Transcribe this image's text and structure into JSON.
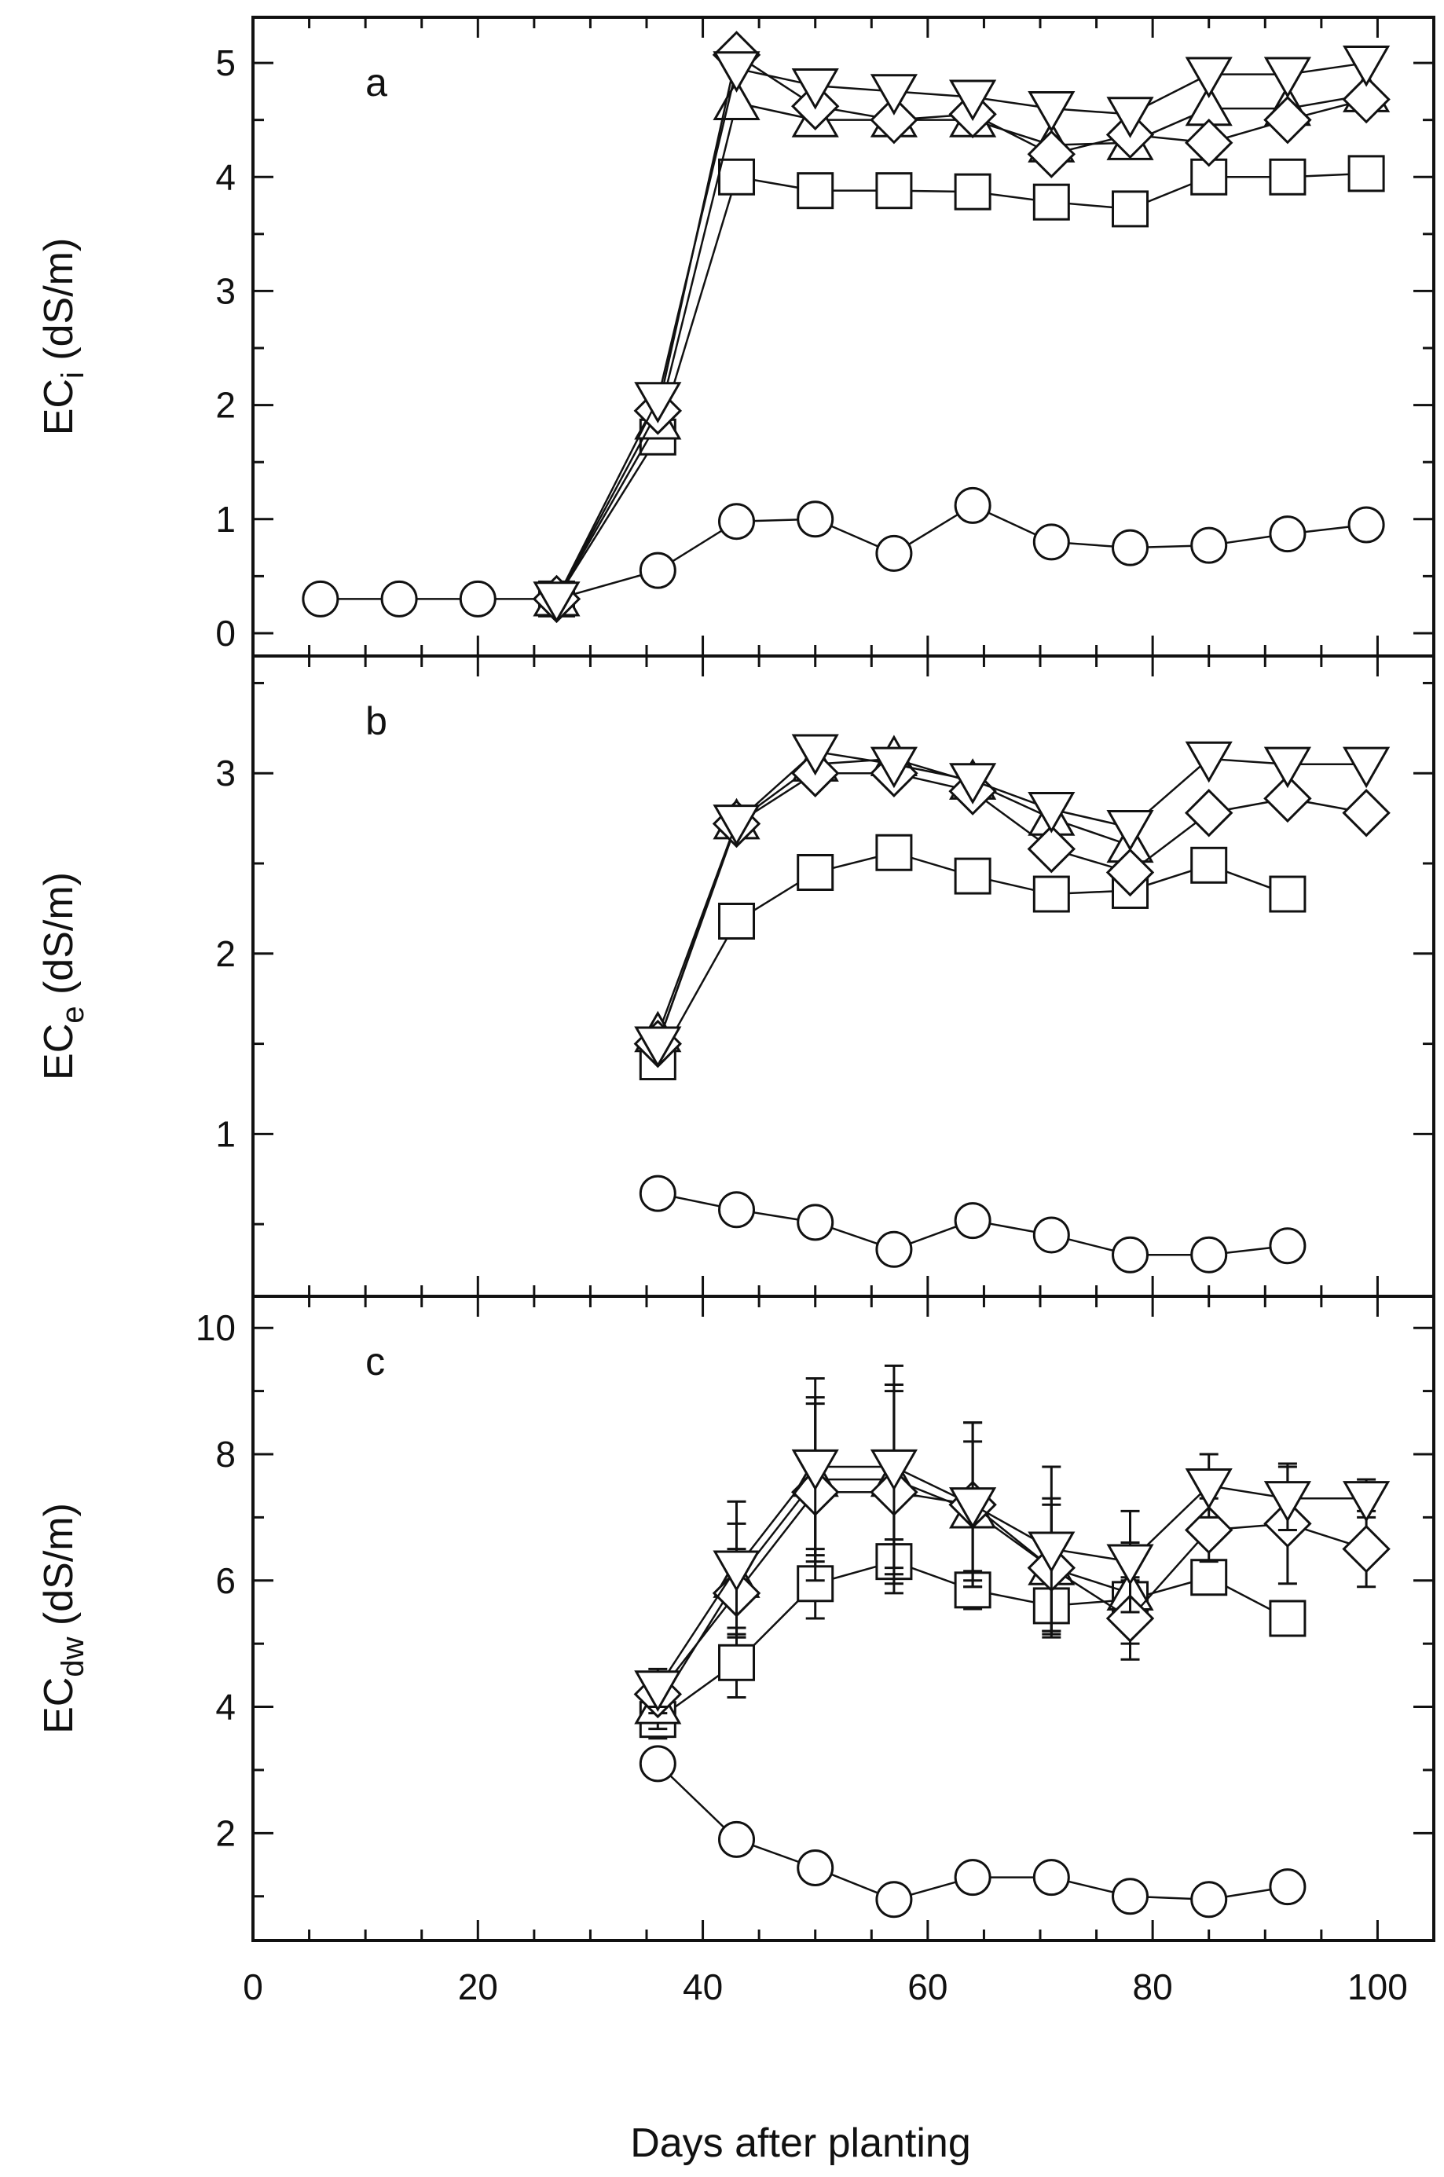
{
  "chart_data": {
    "type": "line",
    "xlabel": "Days after planting",
    "xlim": [
      0,
      105
    ],
    "xticks": [
      0,
      20,
      40,
      60,
      80,
      100
    ],
    "xtick_labels": [
      "0",
      "20",
      "40",
      "60",
      "80",
      "100"
    ],
    "panels": [
      {
        "id": "a",
        "label": "a",
        "ylabel_main": "EC",
        "ylabel_sub": "i",
        "ylabel_unit": " (dS/m)",
        "ylim": [
          -0.2,
          5.4
        ],
        "yticks": [
          0,
          1,
          2,
          3,
          4,
          5
        ],
        "ytick_labels": [
          "0",
          "1",
          "2",
          "3",
          "4",
          "5"
        ],
        "series": [
          {
            "name": "circle",
            "marker": "circle",
            "x": [
              6,
              13,
              20,
              27,
              36,
              43,
              50,
              57,
              64,
              71,
              78,
              85,
              92,
              99
            ],
            "y": [
              0.3,
              0.3,
              0.3,
              0.3,
              0.55,
              0.98,
              1.0,
              0.7,
              1.12,
              0.8,
              0.75,
              0.77,
              0.87,
              0.95
            ]
          },
          {
            "name": "square",
            "marker": "square",
            "x": [
              27,
              36,
              43,
              50,
              57,
              64,
              71,
              78,
              85,
              92,
              99
            ],
            "y": [
              0.3,
              1.72,
              4.0,
              3.88,
              3.88,
              3.87,
              3.78,
              3.72,
              4.0,
              4.0,
              4.03
            ]
          },
          {
            "name": "triangle-up",
            "marker": "triangle-up",
            "x": [
              27,
              36,
              43,
              50,
              57,
              64,
              71,
              78,
              85,
              92,
              99
            ],
            "y": [
              0.3,
              1.85,
              4.65,
              4.5,
              4.5,
              4.5,
              4.28,
              4.3,
              4.6,
              4.6,
              4.72
            ]
          },
          {
            "name": "diamond",
            "marker": "diamond",
            "x": [
              27,
              36,
              43,
              50,
              57,
              64,
              71,
              78,
              85,
              92,
              99
            ],
            "y": [
              0.3,
              1.95,
              5.07,
              4.62,
              4.5,
              4.55,
              4.2,
              4.37,
              4.3,
              4.5,
              4.68
            ]
          },
          {
            "name": "triangle-down",
            "marker": "triangle-down",
            "x": [
              27,
              36,
              43,
              50,
              57,
              64,
              71,
              78,
              85,
              92,
              99
            ],
            "y": [
              0.3,
              2.05,
              4.95,
              4.8,
              4.75,
              4.7,
              4.6,
              4.55,
              4.9,
              4.9,
              5.0
            ]
          }
        ]
      },
      {
        "id": "b",
        "label": "b",
        "ylabel_main": "EC",
        "ylabel_sub": "e",
        "ylabel_unit": " (dS/m)",
        "ylim": [
          0.1,
          3.65
        ],
        "yticks": [
          1,
          2,
          3
        ],
        "ytick_labels": [
          "1",
          "2",
          "3"
        ],
        "series": [
          {
            "name": "circle",
            "marker": "circle",
            "x": [
              36,
              43,
              50,
              57,
              64,
              71,
              78,
              85,
              92
            ],
            "y": [
              0.67,
              0.58,
              0.51,
              0.36,
              0.52,
              0.44,
              0.33,
              0.33,
              0.38
            ]
          },
          {
            "name": "square",
            "marker": "square",
            "x": [
              36,
              43,
              50,
              57,
              64,
              71,
              78,
              85,
              92
            ],
            "y": [
              1.4,
              2.18,
              2.45,
              2.56,
              2.43,
              2.33,
              2.35,
              2.49,
              2.33
            ]
          },
          {
            "name": "triangle-up",
            "marker": "triangle-up",
            "x": [
              36,
              43,
              50,
              57,
              64,
              71,
              78
            ],
            "y": [
              1.55,
              2.73,
              3.05,
              3.08,
              2.95,
              2.75,
              2.6
            ]
          },
          {
            "name": "diamond",
            "marker": "diamond",
            "x": [
              36,
              43,
              50,
              57,
              64,
              71,
              78,
              85,
              92,
              99
            ],
            "y": [
              1.5,
              2.72,
              3.0,
              3.0,
              2.9,
              2.58,
              2.45,
              2.78,
              2.86,
              2.78
            ]
          },
          {
            "name": "triangle-down",
            "marker": "triangle-down",
            "x": [
              36,
              43,
              50,
              57,
              64,
              71,
              78,
              85,
              92,
              99
            ],
            "y": [
              1.5,
              2.73,
              3.12,
              3.05,
              2.96,
              2.8,
              2.7,
              3.08,
              3.05,
              3.05
            ]
          }
        ]
      },
      {
        "id": "c",
        "label": "c",
        "ylabel_main": "EC",
        "ylabel_sub": "dw",
        "ylabel_unit": " (dS/m)",
        "ylim": [
          0.3,
          10.5
        ],
        "yticks": [
          2,
          4,
          6,
          8,
          10
        ],
        "ytick_labels": [
          "2",
          "4",
          "6",
          "8",
          "10"
        ],
        "series": [
          {
            "name": "circle",
            "marker": "circle",
            "x": [
              36,
              43,
              50,
              57,
              64,
              71,
              78,
              85,
              92
            ],
            "y": [
              3.1,
              1.9,
              1.45,
              0.95,
              1.3,
              1.3,
              1.0,
              0.95,
              1.15
            ],
            "err": [
              0.2,
              0.15,
              0.15,
              0.2,
              0.15,
              0.15,
              0.1,
              0.1,
              0.1
            ]
          },
          {
            "name": "square",
            "marker": "square",
            "x": [
              36,
              43,
              50,
              57,
              64,
              71,
              78,
              85,
              92
            ],
            "y": [
              3.8,
              4.7,
              5.95,
              6.3,
              5.85,
              5.6,
              5.7,
              6.05,
              5.4
            ],
            "err": [
              0.3,
              0.55,
              0.55,
              0.35,
              0.3,
              0.45,
              0.3,
              0.25,
              0.2
            ]
          },
          {
            "name": "triangle-up",
            "marker": "triangle-up",
            "x": [
              36,
              43,
              50,
              57,
              64,
              71,
              78
            ],
            "y": [
              4.0,
              6.0,
              7.6,
              7.6,
              7.1,
              6.2,
              5.8
            ],
            "err": [
              0.35,
              0.9,
              1.3,
              1.5,
              1.1,
              1.0,
              0.8
            ]
          },
          {
            "name": "diamond",
            "marker": "diamond",
            "x": [
              36,
              43,
              50,
              57,
              64,
              71,
              78,
              85,
              92,
              99
            ],
            "y": [
              4.2,
              5.8,
              7.4,
              7.4,
              7.2,
              6.2,
              5.4,
              6.8,
              6.9,
              6.5
            ],
            "err": [
              0.3,
              0.7,
              1.4,
              1.6,
              1.3,
              1.1,
              0.65,
              0.5,
              0.95,
              0.6
            ]
          },
          {
            "name": "triangle-down",
            "marker": "triangle-down",
            "x": [
              36,
              43,
              50,
              57,
              64,
              71,
              78,
              85,
              92,
              99
            ],
            "y": [
              4.3,
              6.2,
              7.8,
              7.8,
              7.2,
              6.5,
              6.3,
              7.5,
              7.3,
              7.3
            ],
            "err": [
              0.3,
              1.05,
              1.4,
              1.6,
              1.3,
              1.3,
              0.8,
              0.5,
              0.5,
              0.3
            ]
          }
        ]
      }
    ]
  }
}
